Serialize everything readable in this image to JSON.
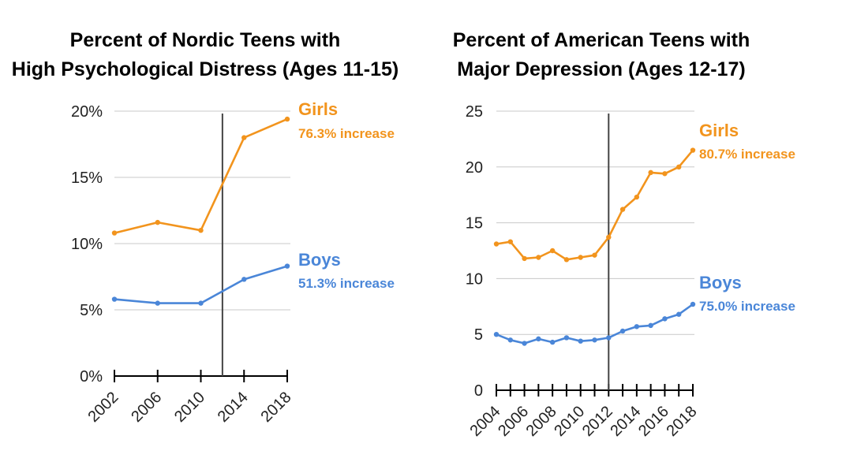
{
  "colors": {
    "girls": "#f2941d",
    "boys": "#4a86d8"
  },
  "chart_data": [
    {
      "type": "line",
      "title": [
        "Percent of Nordic Teens with",
        "High Psychological Distress (Ages 11-15)"
      ],
      "x": [
        2002,
        2006,
        2010,
        2014,
        2018
      ],
      "xticks": [
        "2002",
        "2006",
        "2010",
        "2014",
        "2018"
      ],
      "yticks": [
        "0%",
        "5%",
        "10%",
        "15%",
        "20%"
      ],
      "ylim": [
        0,
        20
      ],
      "xlim": [
        2002,
        2018
      ],
      "vline": 2012,
      "grid": true,
      "series": [
        {
          "name": "Girls",
          "annotation": "76.3% increase",
          "color_key": "girls",
          "values": [
            10.8,
            11.6,
            11.0,
            18.0,
            19.4
          ]
        },
        {
          "name": "Boys",
          "annotation": "51.3% increase",
          "color_key": "boys",
          "values": [
            5.8,
            5.5,
            5.5,
            7.3,
            8.3
          ]
        }
      ]
    },
    {
      "type": "line",
      "title": [
        "Percent of American Teens with",
        "Major Depression (Ages 12-17)"
      ],
      "x": [
        2004,
        2005,
        2006,
        2007,
        2008,
        2009,
        2010,
        2011,
        2012,
        2013,
        2014,
        2015,
        2016,
        2017,
        2018
      ],
      "xticks": [
        "2004",
        "2006",
        "2008",
        "2010",
        "2012",
        "2014",
        "2016",
        "2018"
      ],
      "yticks": [
        "0",
        "5",
        "10",
        "15",
        "20",
        "25"
      ],
      "ylim": [
        0,
        25
      ],
      "xlim": [
        2004,
        2018
      ],
      "vline": 2012,
      "grid": true,
      "series": [
        {
          "name": "Girls",
          "annotation": "80.7% increase",
          "color_key": "girls",
          "values": [
            13.1,
            13.3,
            11.8,
            11.9,
            12.5,
            11.7,
            11.9,
            12.1,
            13.7,
            16.2,
            17.3,
            19.5,
            19.4,
            20.0,
            21.5
          ]
        },
        {
          "name": "Boys",
          "annotation": "75.0% increase",
          "color_key": "boys",
          "values": [
            5.0,
            4.5,
            4.2,
            4.6,
            4.3,
            4.7,
            4.4,
            4.5,
            4.7,
            5.3,
            5.7,
            5.8,
            6.4,
            6.8,
            7.7
          ]
        }
      ]
    }
  ]
}
